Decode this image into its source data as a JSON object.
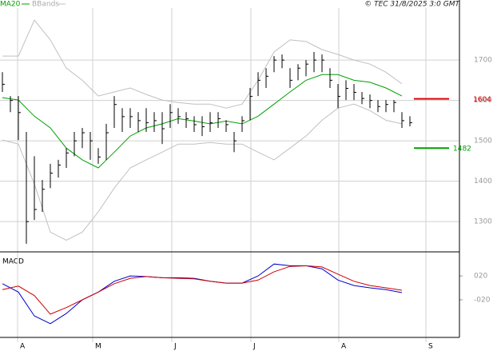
{
  "copyright": "© TEC 31/8/2025 3:0 GMT",
  "chart_data": [
    {
      "type": "ohlc",
      "ylim": [
        1229,
        1829
      ],
      "yticks": [
        1300,
        1400,
        1500,
        1600,
        1700
      ],
      "grid": true,
      "high": [
        1670,
        1611,
        1611,
        1522,
        1462,
        1403,
        1443,
        1453,
        1482,
        1522,
        1532,
        1522,
        1482,
        1542,
        1611,
        1581,
        1581,
        1571,
        1581,
        1571,
        1571,
        1591,
        1581,
        1571,
        1561,
        1561,
        1571,
        1571,
        1551,
        1522,
        1561,
        1631,
        1670,
        1680,
        1710,
        1714,
        1680,
        1690,
        1700,
        1720,
        1714,
        1680,
        1641,
        1650,
        1641,
        1621,
        1615,
        1601,
        1601,
        1601,
        1571,
        1561
      ],
      "low": [
        1621,
        1571,
        1502,
        1245,
        1304,
        1324,
        1383,
        1409,
        1433,
        1462,
        1482,
        1453,
        1443,
        1453,
        1532,
        1522,
        1532,
        1522,
        1522,
        1522,
        1492,
        1532,
        1542,
        1532,
        1522,
        1512,
        1522,
        1532,
        1522,
        1472,
        1522,
        1551,
        1611,
        1631,
        1670,
        1680,
        1631,
        1650,
        1660,
        1670,
        1670,
        1631,
        1581,
        1601,
        1601,
        1591,
        1581,
        1571,
        1571,
        1571,
        1532,
        1536
      ],
      "close": [
        1640,
        1600,
        1570,
        1300,
        1330,
        1380,
        1420,
        1440,
        1470,
        1500,
        1520,
        1500,
        1460,
        1520,
        1590,
        1560,
        1560,
        1550,
        1545,
        1550,
        1530,
        1570,
        1560,
        1555,
        1540,
        1535,
        1545,
        1555,
        1540,
        1500,
        1550,
        1610,
        1650,
        1660,
        1700,
        1700,
        1650,
        1680,
        1690,
        1700,
        1700,
        1650,
        1610,
        1630,
        1620,
        1605,
        1600,
        1585,
        1590,
        1595,
        1550,
        1545
      ],
      "series": [
        {
          "name": "MA20",
          "color": "#00a000",
          "x": [
            0,
            2,
            4,
            6,
            8,
            10,
            12,
            14,
            16,
            18,
            20,
            22,
            24,
            26,
            28,
            30,
            32,
            34,
            36,
            38,
            40,
            42,
            44,
            46,
            48,
            50
          ],
          "values": [
            1607,
            1601,
            1561,
            1532,
            1482,
            1453,
            1433,
            1472,
            1512,
            1532,
            1542,
            1555,
            1549,
            1542,
            1549,
            1542,
            1561,
            1591,
            1621,
            1650,
            1664,
            1664,
            1650,
            1645,
            1631,
            1611
          ]
        },
        {
          "name": "BBands",
          "color": "#c0c0c0",
          "x": [
            0,
            2,
            4,
            6,
            8,
            10,
            12,
            14,
            16,
            18,
            20,
            22,
            24,
            26,
            28,
            30,
            32,
            34,
            36,
            38,
            40,
            42,
            44,
            46,
            48,
            50
          ],
          "upper": [
            1710,
            1710,
            1799,
            1750,
            1680,
            1650,
            1611,
            1621,
            1631,
            1615,
            1601,
            1595,
            1591,
            1591,
            1581,
            1591,
            1650,
            1720,
            1750,
            1746,
            1726,
            1714,
            1700,
            1690,
            1670,
            1641
          ],
          "lower": [
            1502,
            1492,
            1393,
            1274,
            1254,
            1274,
            1324,
            1383,
            1433,
            1453,
            1472,
            1492,
            1492,
            1496,
            1492,
            1492,
            1472,
            1453,
            1482,
            1512,
            1551,
            1581,
            1591,
            1575,
            1551,
            1542
          ]
        }
      ],
      "levels": [
        {
          "value": 1604,
          "color": "#e00000"
        },
        {
          "value": 1482,
          "color": "#00a000"
        }
      ]
    },
    {
      "type": "line",
      "title": "MACD",
      "ylim": [
        -83,
        59
      ],
      "yticks": [
        {
          "value": 20,
          "label": "020"
        },
        {
          "value": -20,
          "label": "-020"
        }
      ],
      "xlim": [
        -0.3,
        57.2
      ],
      "xticks": [
        {
          "value": 1.9,
          "label": "A"
        },
        {
          "value": 11.3,
          "label": "M"
        },
        {
          "value": 21.2,
          "label": "J"
        },
        {
          "value": 31.1,
          "label": "J"
        },
        {
          "value": 42.1,
          "label": "A"
        },
        {
          "value": 53,
          "label": "S"
        }
      ],
      "series": [
        {
          "color": "#0000cc",
          "x": [
            0,
            2,
            4,
            6,
            8,
            10,
            12,
            14,
            16,
            18,
            20,
            22,
            24,
            26,
            28,
            30,
            32,
            34,
            36,
            38,
            40,
            42,
            44,
            46,
            48,
            50
          ],
          "values": [
            7,
            -7,
            -47,
            -60,
            -43,
            -20,
            -7,
            11,
            20,
            19,
            17,
            17,
            16,
            11,
            8,
            8,
            20,
            40,
            37,
            37,
            32,
            13,
            4,
            0,
            -3,
            -8
          ]
        },
        {
          "color": "#cc0000",
          "x": [
            0,
            2,
            4,
            6,
            8,
            10,
            12,
            14,
            16,
            18,
            20,
            22,
            24,
            26,
            28,
            30,
            32,
            34,
            36,
            38,
            40,
            42,
            44,
            46,
            48,
            50
          ],
          "values": [
            -3,
            3,
            -13,
            -44,
            -33,
            -20,
            -7,
            7,
            16,
            19,
            17,
            16,
            15,
            11,
            8,
            8,
            13,
            27,
            36,
            37,
            35,
            23,
            11,
            4,
            0,
            -4
          ]
        }
      ]
    }
  ]
}
